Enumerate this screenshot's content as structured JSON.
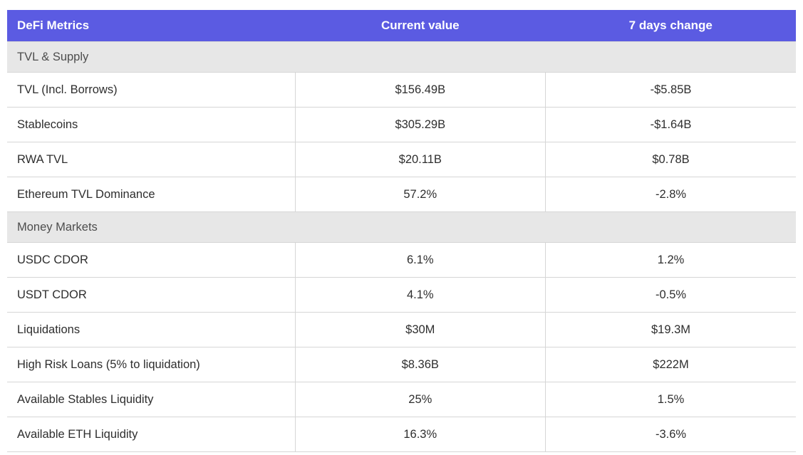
{
  "chart_data": {
    "type": "table",
    "title": "DeFi Metrics",
    "header": {
      "title": "DeFi Metrics",
      "col_current": "Current value",
      "col_change": "7 days change"
    },
    "columns": [
      "DeFi Metrics",
      "Current value",
      "7 days change"
    ],
    "colors": {
      "header_bg": "#5B5BE2",
      "header_text": "#FFFFFF",
      "section_bg": "#E7E7E7",
      "section_text": "#4D4D4D",
      "row_text": "#2E2E2E",
      "border": "#D6D6D6"
    },
    "sections": [
      {
        "label": "TVL & Supply",
        "rows": [
          {
            "label": "TVL (Incl. Borrows)",
            "current": "$156.49B",
            "change": "-$5.85B"
          },
          {
            "label": "Stablecoins",
            "current": "$305.29B",
            "change": "-$1.64B"
          },
          {
            "label": "RWA TVL",
            "current": "$20.11B",
            "change": "$0.78B"
          },
          {
            "label": "Ethereum TVL Dominance",
            "current": "57.2%",
            "change": "-2.8%"
          }
        ]
      },
      {
        "label": "Money Markets",
        "rows": [
          {
            "label": "USDC CDOR",
            "current": "6.1%",
            "change": "1.2%"
          },
          {
            "label": "USDT CDOR",
            "current": "4.1%",
            "change": "-0.5%"
          },
          {
            "label": "Liquidations",
            "current": "$30M",
            "change": "$19.3M"
          },
          {
            "label": "High Risk Loans (5% to liquidation)",
            "current": "$8.36B",
            "change": "$222M"
          },
          {
            "label": "Available Stables Liquidity",
            "current": "25%",
            "change": "1.5%"
          },
          {
            "label": "Available ETH Liquidity",
            "current": "16.3%",
            "change": "-3.6%"
          }
        ]
      }
    ]
  }
}
